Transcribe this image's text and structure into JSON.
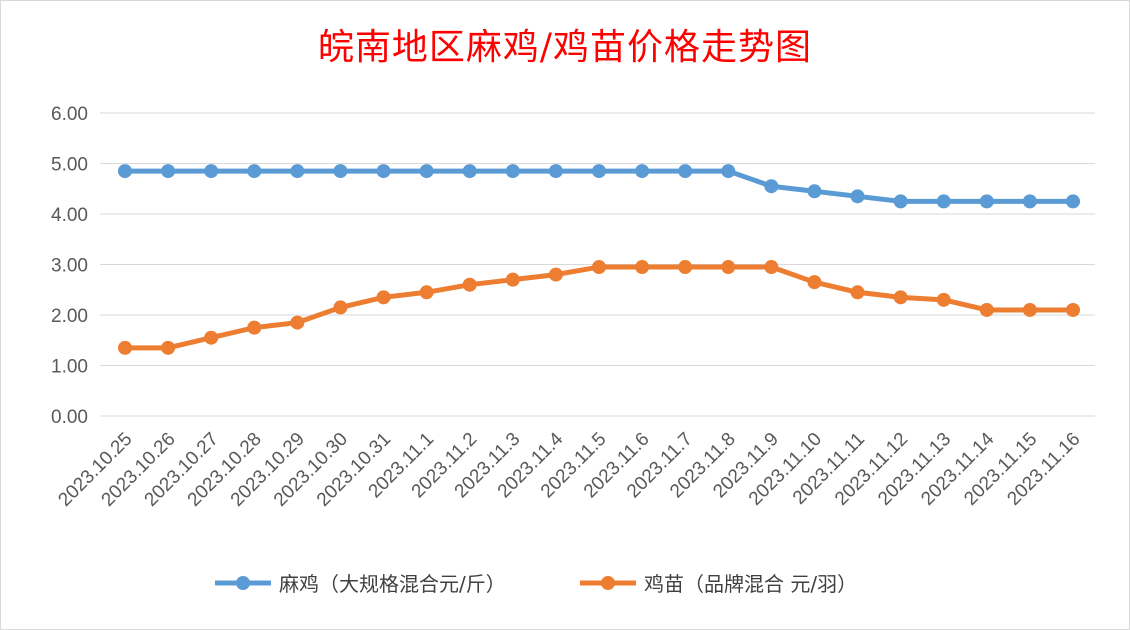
{
  "chart_data": {
    "type": "line",
    "title": "皖南地区麻鸡/鸡苗价格走势图",
    "categories": [
      "2023.10.25",
      "2023.10.26",
      "2023.10.27",
      "2023.10.28",
      "2023.10.29",
      "2023.10.30",
      "2023.10.31",
      "2023.11.1",
      "2023.11.2",
      "2023.11.3",
      "2023.11.4",
      "2023.11.5",
      "2023.11.6",
      "2023.11.7",
      "2023.11.8",
      "2023.11.9",
      "2023.11.10",
      "2023.11.11",
      "2023.11.12",
      "2023.11.13",
      "2023.11.14",
      "2023.11.15",
      "2023.11.16"
    ],
    "series": [
      {
        "name": "麻鸡（大规格混合元/斤）",
        "color": "#5b9bd5",
        "values": [
          4.85,
          4.85,
          4.85,
          4.85,
          4.85,
          4.85,
          4.85,
          4.85,
          4.85,
          4.85,
          4.85,
          4.85,
          4.85,
          4.85,
          4.85,
          4.55,
          4.45,
          4.35,
          4.25,
          4.25,
          4.25,
          4.25,
          4.25
        ]
      },
      {
        "name": "鸡苗（品牌混合 元/羽）",
        "color": "#ed7d31",
        "values": [
          1.35,
          1.35,
          1.55,
          1.75,
          1.85,
          2.15,
          2.35,
          2.45,
          2.6,
          2.7,
          2.8,
          2.95,
          2.95,
          2.95,
          2.95,
          2.95,
          2.65,
          2.45,
          2.35,
          2.3,
          2.1,
          2.1,
          2.1
        ]
      }
    ],
    "yticks": [
      "0.00",
      "1.00",
      "2.00",
      "3.00",
      "4.00",
      "5.00",
      "6.00"
    ],
    "ylim": [
      0,
      6
    ],
    "grid": true,
    "legend_position": "bottom"
  }
}
